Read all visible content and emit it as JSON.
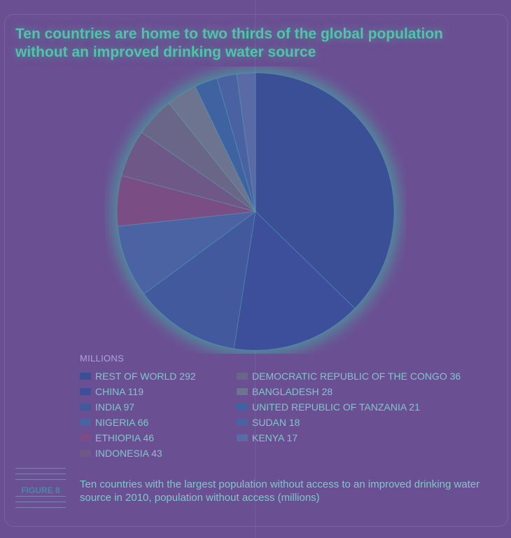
{
  "title": "Ten countries are home to two thirds of the global population without an improved drinking water source",
  "chart_data": {
    "type": "pie",
    "legend_title": "MILLIONS",
    "slices": [
      {
        "label": "REST OF WORLD 292",
        "value": 292,
        "color": "#3a4f96"
      },
      {
        "label": "CHINA 119",
        "value": 119,
        "color": "#3d4e9b"
      },
      {
        "label": "INDIA 97",
        "value": 97,
        "color": "#42599d"
      },
      {
        "label": "NIGERIA 66",
        "value": 66,
        "color": "#4b62a3"
      },
      {
        "label": "ETHIOPIA 46",
        "value": 46,
        "color": "#7b4d85"
      },
      {
        "label": "INDONESIA 43",
        "value": 43,
        "color": "#6e5887"
      },
      {
        "label": "DEMOCRATIC REPUBLIC OF THE CONGO 36",
        "value": 36,
        "color": "#6a6688"
      },
      {
        "label": "BANGLADESH 28",
        "value": 28,
        "color": "#6d748f"
      },
      {
        "label": "UNITED REPUBLIC OF TANZANIA 21",
        "value": 21,
        "color": "#3f62a0"
      },
      {
        "label": "SUDAN 18",
        "value": 18,
        "color": "#4a62a2"
      },
      {
        "label": "KENYA 17",
        "value": 17,
        "color": "#5a6aa6"
      }
    ]
  },
  "figure_label": "FIGURE 8",
  "caption": "Ten countries with the largest population without access to an improved drinking water source in 2010, population without access (millions)"
}
